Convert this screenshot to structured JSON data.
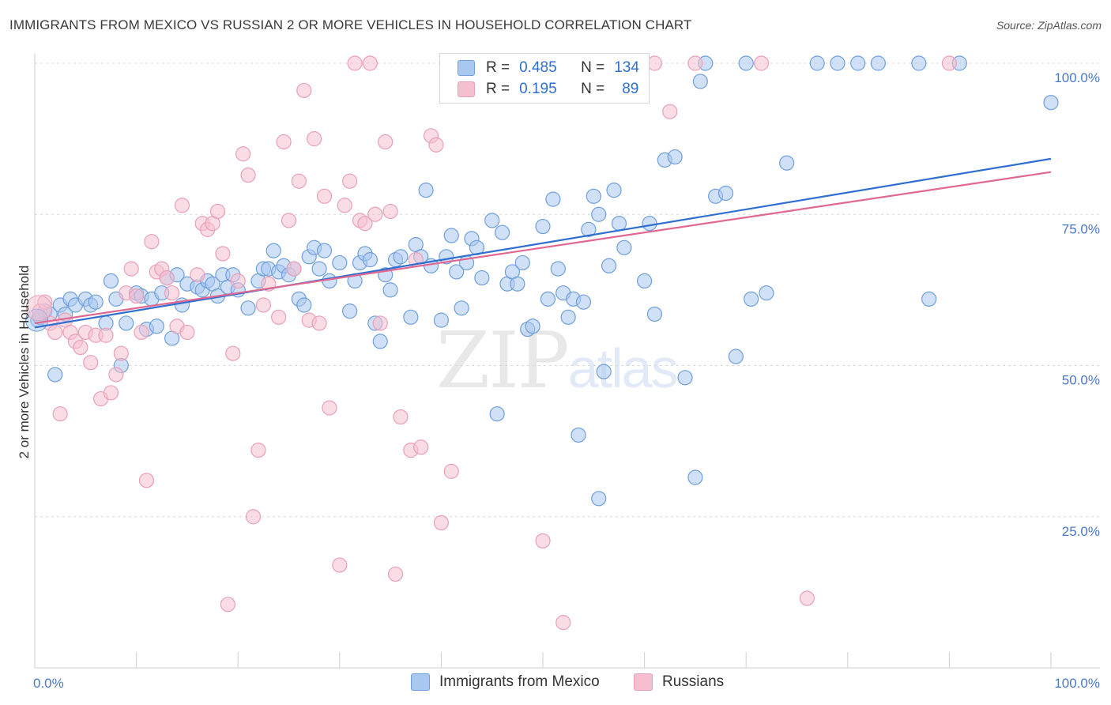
{
  "title": "IMMIGRANTS FROM MEXICO VS RUSSIAN 2 OR MORE VEHICLES IN HOUSEHOLD CORRELATION CHART",
  "source": "Source: ZipAtlas.com",
  "watermark": {
    "zip": "ZIP",
    "atlas": "atlas"
  },
  "legend": {
    "r_label": "R =",
    "n_label": "N =",
    "mexico": {
      "r": "0.485",
      "n": "134"
    },
    "russians": {
      "r": "0.195",
      "n": "89"
    }
  },
  "colors": {
    "mexico_fill": "#a9c8f0",
    "mexico_stroke": "#6f9fdc",
    "mexico_line": "#2f6fd0",
    "russians_fill": "#f6bfd0",
    "russians_stroke": "#e8a0b8",
    "russians_line": "#e06890",
    "tick_text": "#4a78c4"
  },
  "chart_data": {
    "type": "scatter",
    "xlabel": "",
    "ylabel": "2 or more Vehicles in Household",
    "xlim": [
      0,
      100
    ],
    "ylim": [
      0,
      100
    ],
    "x_ticks": [
      {
        "value": 0,
        "label": "0.0%"
      },
      {
        "value": 100,
        "label": "100.0%"
      }
    ],
    "y_ticks": [
      {
        "value": 25,
        "label": "25.0%"
      },
      {
        "value": 50,
        "label": "50.0%"
      },
      {
        "value": 75,
        "label": "75.0%"
      },
      {
        "value": 100,
        "label": "100.0%"
      }
    ],
    "grid": true,
    "series": [
      {
        "name": "Immigrants from Mexico",
        "trend": [
          [
            0,
            56.3
          ],
          [
            100,
            84.2
          ]
        ],
        "points": [
          [
            0.3,
            57.5
          ],
          [
            0.5,
            58
          ],
          [
            1,
            59
          ],
          [
            1.5,
            58.5
          ],
          [
            2,
            48.5
          ],
          [
            2.5,
            60
          ],
          [
            3,
            58.5
          ],
          [
            3.5,
            61
          ],
          [
            4,
            60
          ],
          [
            5,
            61
          ],
          [
            5.5,
            60
          ],
          [
            6,
            60.5
          ],
          [
            7,
            57
          ],
          [
            7.5,
            64
          ],
          [
            8,
            61
          ],
          [
            8.5,
            50
          ],
          [
            9,
            57
          ],
          [
            10,
            62
          ],
          [
            10.5,
            61.5
          ],
          [
            11,
            56
          ],
          [
            11.5,
            61
          ],
          [
            12,
            56.5
          ],
          [
            12.5,
            62
          ],
          [
            13,
            64.5
          ],
          [
            13.5,
            54.5
          ],
          [
            14,
            65
          ],
          [
            14.5,
            60
          ],
          [
            15,
            63.5
          ],
          [
            16,
            63
          ],
          [
            16.5,
            62.5
          ],
          [
            17,
            64
          ],
          [
            17.5,
            63.5
          ],
          [
            18,
            61.5
          ],
          [
            18.5,
            65
          ],
          [
            19,
            63
          ],
          [
            19.5,
            65
          ],
          [
            20,
            62.5
          ],
          [
            21,
            59.5
          ],
          [
            22,
            64
          ],
          [
            22.5,
            66
          ],
          [
            23,
            66
          ],
          [
            23.5,
            69
          ],
          [
            24,
            65.5
          ],
          [
            24.5,
            66.5
          ],
          [
            25,
            65
          ],
          [
            25.5,
            66
          ],
          [
            26,
            61
          ],
          [
            26.5,
            60
          ],
          [
            27,
            68
          ],
          [
            27.5,
            69.5
          ],
          [
            28,
            66
          ],
          [
            28.5,
            69
          ],
          [
            29,
            64
          ],
          [
            30,
            67
          ],
          [
            31,
            59
          ],
          [
            31.5,
            64
          ],
          [
            32,
            67
          ],
          [
            32.5,
            68.5
          ],
          [
            33,
            67.5
          ],
          [
            33.5,
            57
          ],
          [
            34,
            54
          ],
          [
            34.5,
            65
          ],
          [
            35,
            62.5
          ],
          [
            35.5,
            67.5
          ],
          [
            36,
            68
          ],
          [
            37,
            58
          ],
          [
            37.5,
            70
          ],
          [
            38,
            68
          ],
          [
            38.5,
            79
          ],
          [
            39,
            66.5
          ],
          [
            40,
            57.5
          ],
          [
            40.5,
            68
          ],
          [
            41,
            71.5
          ],
          [
            41.5,
            65.5
          ],
          [
            42,
            59.5
          ],
          [
            42.5,
            67
          ],
          [
            43,
            71
          ],
          [
            43.5,
            69.5
          ],
          [
            44,
            64.5
          ],
          [
            45,
            74
          ],
          [
            45.5,
            42
          ],
          [
            46,
            72
          ],
          [
            46.5,
            63.5
          ],
          [
            47,
            65.5
          ],
          [
            47.5,
            63.5
          ],
          [
            48,
            67
          ],
          [
            48.5,
            56
          ],
          [
            49,
            56.5
          ],
          [
            50,
            73
          ],
          [
            50.5,
            61
          ],
          [
            51,
            77.5
          ],
          [
            51.5,
            66
          ],
          [
            52,
            62
          ],
          [
            52.5,
            58
          ],
          [
            53,
            61
          ],
          [
            53.5,
            38.5
          ],
          [
            54,
            60.5
          ],
          [
            54.5,
            72.5
          ],
          [
            55,
            78
          ],
          [
            55.5,
            75
          ],
          [
            56,
            49
          ],
          [
            56.5,
            66.5
          ],
          [
            57,
            79
          ],
          [
            57.5,
            73.5
          ],
          [
            58,
            69.5
          ],
          [
            59,
            100
          ],
          [
            60,
            64
          ],
          [
            60.5,
            73.5
          ],
          [
            61,
            58.5
          ],
          [
            62,
            84
          ],
          [
            63,
            84.5
          ],
          [
            64,
            48
          ],
          [
            65,
            31.5
          ],
          [
            65.5,
            97
          ],
          [
            66,
            100
          ],
          [
            67,
            78
          ],
          [
            68,
            78.5
          ],
          [
            69,
            51.5
          ],
          [
            70,
            100
          ],
          [
            70.5,
            61
          ],
          [
            72,
            62
          ],
          [
            74,
            83.5
          ],
          [
            77,
            100
          ],
          [
            81,
            100
          ],
          [
            83,
            100
          ],
          [
            87,
            100
          ],
          [
            88,
            61
          ],
          [
            91,
            100
          ],
          [
            100,
            93.5
          ],
          [
            79,
            100
          ],
          [
            57.5,
            100
          ],
          [
            55.5,
            28
          ]
        ]
      },
      {
        "name": "Russians",
        "trend": [
          [
            0,
            57
          ],
          [
            100,
            82
          ]
        ],
        "points": [
          [
            0.5,
            59
          ],
          [
            1,
            60.5
          ],
          [
            1.5,
            57
          ],
          [
            2,
            55.5
          ],
          [
            2.5,
            42
          ],
          [
            3,
            57.5
          ],
          [
            3.5,
            55.5
          ],
          [
            4,
            54
          ],
          [
            4.5,
            53
          ],
          [
            5,
            55.5
          ],
          [
            5.5,
            50.5
          ],
          [
            6,
            55
          ],
          [
            6.5,
            44.5
          ],
          [
            7,
            55
          ],
          [
            7.5,
            45.5
          ],
          [
            8,
            48.5
          ],
          [
            8.5,
            52
          ],
          [
            9,
            62
          ],
          [
            9.5,
            66
          ],
          [
            10,
            61.5
          ],
          [
            10.5,
            55.5
          ],
          [
            11,
            31
          ],
          [
            11.5,
            70.5
          ],
          [
            12,
            65.5
          ],
          [
            12.5,
            66
          ],
          [
            13,
            64.5
          ],
          [
            13.5,
            62
          ],
          [
            14,
            56.5
          ],
          [
            14.5,
            76.5
          ],
          [
            15,
            55.5
          ],
          [
            16,
            65
          ],
          [
            16.5,
            73.5
          ],
          [
            17,
            72.5
          ],
          [
            17.5,
            73.5
          ],
          [
            18,
            75.5
          ],
          [
            18.5,
            68.5
          ],
          [
            19,
            10.5
          ],
          [
            19.5,
            52
          ],
          [
            20,
            64
          ],
          [
            20.5,
            85
          ],
          [
            21,
            81.5
          ],
          [
            21.5,
            25
          ],
          [
            22,
            36
          ],
          [
            22.5,
            60
          ],
          [
            23,
            63.5
          ],
          [
            24,
            58
          ],
          [
            24.5,
            87
          ],
          [
            25,
            74
          ],
          [
            25.5,
            66
          ],
          [
            26,
            80.5
          ],
          [
            26.5,
            95.5
          ],
          [
            27,
            57.5
          ],
          [
            27.5,
            87.5
          ],
          [
            28,
            57
          ],
          [
            28.5,
            78
          ],
          [
            29,
            43
          ],
          [
            30,
            17
          ],
          [
            30.5,
            76.5
          ],
          [
            31,
            80.5
          ],
          [
            31.5,
            100
          ],
          [
            32,
            74
          ],
          [
            32.5,
            73.5
          ],
          [
            33,
            100
          ],
          [
            33.5,
            75
          ],
          [
            34,
            57
          ],
          [
            34.5,
            87
          ],
          [
            35,
            75.5
          ],
          [
            35.5,
            15.5
          ],
          [
            36,
            41.5
          ],
          [
            37,
            36
          ],
          [
            37.5,
            67.5
          ],
          [
            38,
            36.5
          ],
          [
            39,
            88
          ],
          [
            39.5,
            86.5
          ],
          [
            40,
            24
          ],
          [
            41,
            32.5
          ],
          [
            50,
            21
          ],
          [
            52,
            7.5
          ],
          [
            59,
            100
          ],
          [
            61,
            100
          ],
          [
            62.5,
            92
          ],
          [
            76,
            11.5
          ],
          [
            90,
            100
          ],
          [
            71.5,
            100
          ],
          [
            65,
            100
          ],
          [
            48,
            100
          ]
        ]
      }
    ]
  }
}
